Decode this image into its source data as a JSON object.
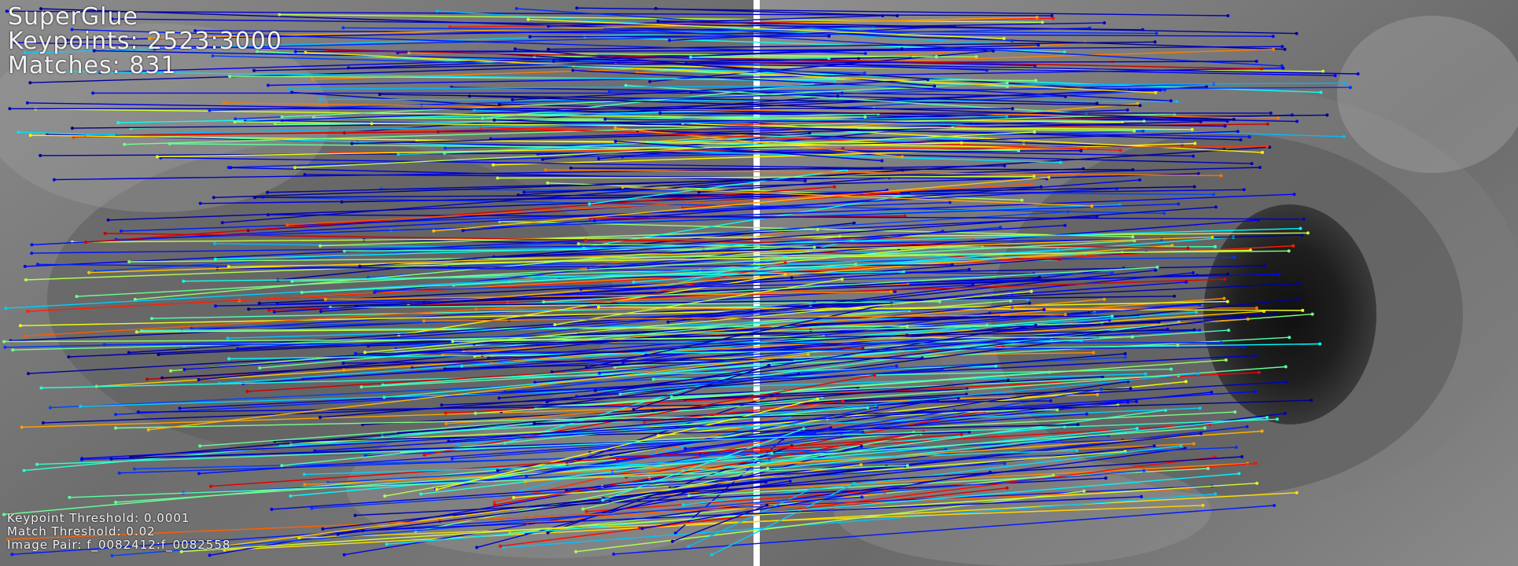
{
  "overlay": {
    "method": "SuperGlue",
    "keypoints": "Keypoints: 2523:3000",
    "matches": "Matches: 831"
  },
  "footer": {
    "keypoint_threshold": "Keypoint Threshold: 0.0001",
    "match_threshold": "Match Threshold: 0.02",
    "image_pair": "Image Pair: f_0082412:f_0082558"
  },
  "colors": {
    "tissue_dark": "#5a5a5a",
    "tissue_light": "#9a9a9a",
    "divider": "#ffffff",
    "jet_low": "#0000b0",
    "jet_mid": "#00c8ff",
    "jet_high": "#ff4000"
  }
}
